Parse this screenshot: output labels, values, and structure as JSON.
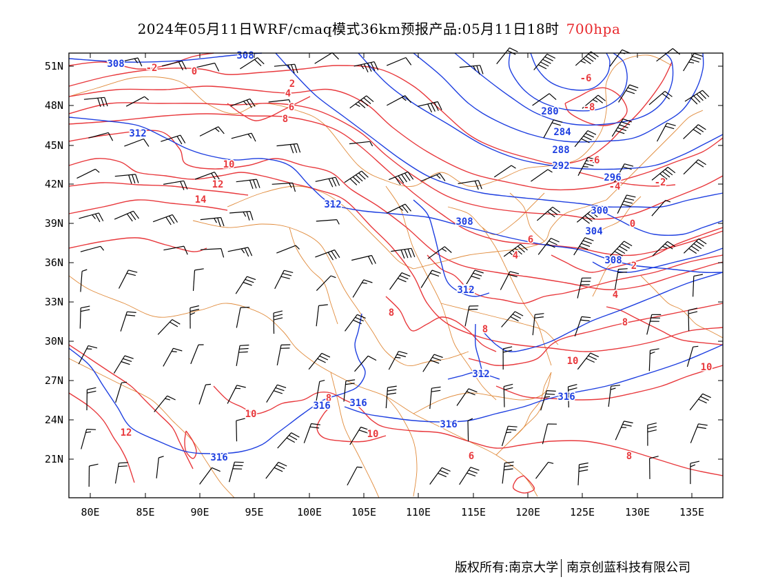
{
  "title": {
    "main": "2024年05月11日WRF/cmaq模式36km预报产品:05月11日18时",
    "level": "700hpa",
    "level_color": "#e8282c"
  },
  "colors": {
    "temperature": "#e8383c",
    "geopotential": "#1e3fe0",
    "boundary": "#e08a3a",
    "wind": "#000000"
  },
  "axes": {
    "lat_labels": [
      "51N",
      "48N",
      "45N",
      "42N",
      "39N",
      "36N",
      "33N",
      "30N",
      "27N",
      "24N",
      "21N"
    ],
    "lon_labels": [
      "80E",
      "85E",
      "90E",
      "95E",
      "100E",
      "105E",
      "110E",
      "115E",
      "120E",
      "125E",
      "130E",
      "135E"
    ]
  },
  "temperature_labels": [
    "-2",
    "0",
    "2",
    "4",
    "6",
    "8",
    "10",
    "12",
    "14",
    "-6",
    "-8",
    "-6",
    "-4",
    "-2",
    "0",
    "2",
    "4",
    "4",
    "6",
    "8",
    "8",
    "8",
    "10",
    "10",
    "10",
    "12",
    "8",
    "10",
    "10",
    "6",
    "8"
  ],
  "height_labels": [
    "308",
    "308",
    "312",
    "312",
    "308",
    "280",
    "284",
    "288",
    "292",
    "296",
    "300",
    "304",
    "308",
    "312",
    "312",
    "316",
    "316",
    "316",
    "316",
    "316"
  ],
  "footer": {
    "copyright": "版权所有:南京大学",
    "company": "南京创蓝科技有限公司"
  }
}
